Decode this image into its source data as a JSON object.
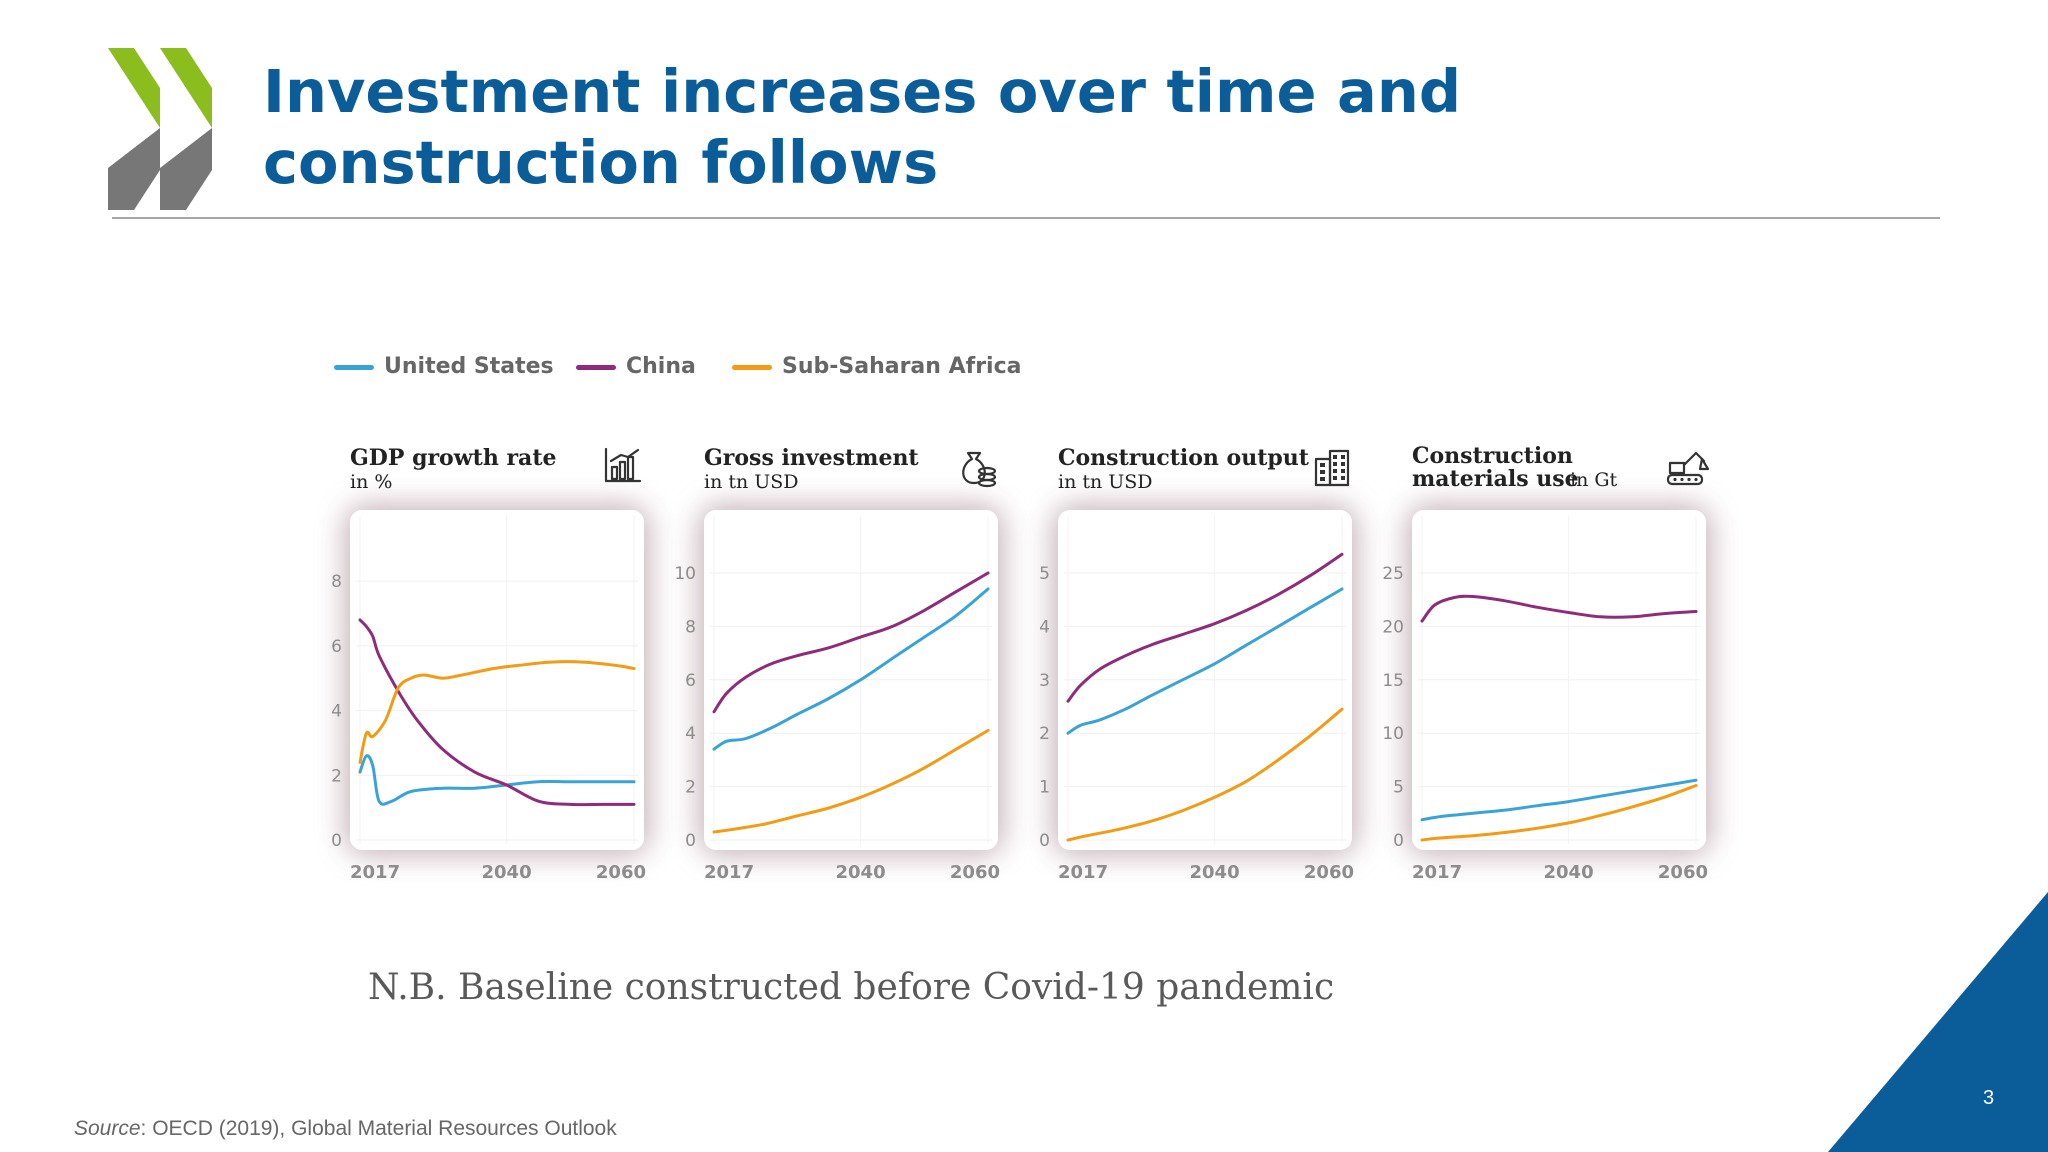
{
  "slide": {
    "title": "Investment increases over time and construction follows",
    "note": "N.B. Baseline constructed before Covid-19 pandemic",
    "source_label": "Source",
    "source_text": ": OECD (2019), Global Material Resources Outlook",
    "page_number": "3",
    "colors": {
      "title": "#0a5d98",
      "logo_green": "#8cbd1e",
      "logo_grey": "#777777",
      "corner": "#0a5d98"
    }
  },
  "legend": [
    {
      "label": "United States",
      "color": "#3aa3d6"
    },
    {
      "label": "China",
      "color": "#8e2c7a"
    },
    {
      "label": "Sub-Saharan Africa",
      "color": "#f29b14"
    }
  ],
  "chart_data": [
    {
      "type": "line",
      "title": "GDP growth rate",
      "subtitle": "in %",
      "icon": "bar-chart-icon",
      "x_ticks": [
        2017,
        2040,
        2060
      ],
      "xlim": [
        2017,
        2060
      ],
      "y_ticks": [
        0,
        2,
        4,
        6,
        8
      ],
      "ylim": [
        0,
        8.5
      ],
      "series": [
        {
          "name": "United States",
          "color": "#3aa3d6",
          "points": [
            [
              2017,
              2.1
            ],
            [
              2018,
              2.6
            ],
            [
              2019,
              2.3
            ],
            [
              2020,
              1.2
            ],
            [
              2022,
              1.2
            ],
            [
              2025,
              1.5
            ],
            [
              2030,
              1.6
            ],
            [
              2035,
              1.6
            ],
            [
              2040,
              1.7
            ],
            [
              2045,
              1.8
            ],
            [
              2050,
              1.8
            ],
            [
              2055,
              1.8
            ],
            [
              2060,
              1.8
            ]
          ]
        },
        {
          "name": "China",
          "color": "#8e2c7a",
          "points": [
            [
              2017,
              6.8
            ],
            [
              2018,
              6.6
            ],
            [
              2019,
              6.3
            ],
            [
              2020,
              5.7
            ],
            [
              2023,
              4.6
            ],
            [
              2026,
              3.7
            ],
            [
              2030,
              2.8
            ],
            [
              2035,
              2.1
            ],
            [
              2040,
              1.7
            ],
            [
              2045,
              1.2
            ],
            [
              2050,
              1.1
            ],
            [
              2055,
              1.1
            ],
            [
              2060,
              1.1
            ]
          ]
        },
        {
          "name": "Sub-Saharan Africa",
          "color": "#f29b14",
          "points": [
            [
              2017,
              2.4
            ],
            [
              2018,
              3.3
            ],
            [
              2019,
              3.2
            ],
            [
              2021,
              3.7
            ],
            [
              2023,
              4.7
            ],
            [
              2025,
              5.0
            ],
            [
              2027,
              5.1
            ],
            [
              2030,
              5.0
            ],
            [
              2033,
              5.1
            ],
            [
              2038,
              5.3
            ],
            [
              2042,
              5.4
            ],
            [
              2047,
              5.5
            ],
            [
              2052,
              5.5
            ],
            [
              2057,
              5.4
            ],
            [
              2060,
              5.3
            ]
          ]
        }
      ]
    },
    {
      "type": "line",
      "title": "Gross investment",
      "subtitle": "in tn USD",
      "icon": "money-bag-icon",
      "x_ticks": [
        2017,
        2040,
        2060
      ],
      "xlim": [
        2017,
        2060
      ],
      "y_ticks": [
        0,
        2,
        4,
        6,
        8,
        10
      ],
      "ylim": [
        0,
        10.3
      ],
      "series": [
        {
          "name": "United States",
          "color": "#3aa3d6",
          "points": [
            [
              2017,
              3.4
            ],
            [
              2019,
              3.7
            ],
            [
              2022,
              3.8
            ],
            [
              2026,
              4.2
            ],
            [
              2030,
              4.7
            ],
            [
              2035,
              5.3
            ],
            [
              2040,
              6.0
            ],
            [
              2045,
              6.8
            ],
            [
              2050,
              7.6
            ],
            [
              2055,
              8.4
            ],
            [
              2060,
              9.4
            ]
          ]
        },
        {
          "name": "China",
          "color": "#8e2c7a",
          "points": [
            [
              2017,
              4.8
            ],
            [
              2019,
              5.5
            ],
            [
              2022,
              6.1
            ],
            [
              2026,
              6.6
            ],
            [
              2030,
              6.9
            ],
            [
              2035,
              7.2
            ],
            [
              2040,
              7.6
            ],
            [
              2045,
              8.0
            ],
            [
              2050,
              8.6
            ],
            [
              2055,
              9.3
            ],
            [
              2060,
              10.0
            ]
          ]
        },
        {
          "name": "Sub-Saharan Africa",
          "color": "#f29b14",
          "points": [
            [
              2017,
              0.3
            ],
            [
              2020,
              0.4
            ],
            [
              2025,
              0.6
            ],
            [
              2030,
              0.9
            ],
            [
              2035,
              1.2
            ],
            [
              2040,
              1.6
            ],
            [
              2045,
              2.1
            ],
            [
              2050,
              2.7
            ],
            [
              2055,
              3.4
            ],
            [
              2060,
              4.1
            ]
          ]
        }
      ]
    },
    {
      "type": "line",
      "title": "Construction output",
      "subtitle": "in tn USD",
      "icon": "building-icon",
      "x_ticks": [
        2017,
        2040,
        2060
      ],
      "xlim": [
        2017,
        2060
      ],
      "y_ticks": [
        0,
        1,
        2,
        3,
        4,
        5
      ],
      "ylim": [
        0,
        5.15
      ],
      "series": [
        {
          "name": "United States",
          "color": "#3aa3d6",
          "points": [
            [
              2017,
              2.0
            ],
            [
              2019,
              2.15
            ],
            [
              2022,
              2.25
            ],
            [
              2026,
              2.45
            ],
            [
              2030,
              2.7
            ],
            [
              2035,
              3.0
            ],
            [
              2040,
              3.3
            ],
            [
              2045,
              3.65
            ],
            [
              2050,
              4.0
            ],
            [
              2055,
              4.35
            ],
            [
              2060,
              4.7
            ]
          ]
        },
        {
          "name": "China",
          "color": "#8e2c7a",
          "points": [
            [
              2017,
              2.6
            ],
            [
              2019,
              2.9
            ],
            [
              2022,
              3.2
            ],
            [
              2026,
              3.45
            ],
            [
              2030,
              3.65
            ],
            [
              2035,
              3.85
            ],
            [
              2040,
              4.05
            ],
            [
              2045,
              4.3
            ],
            [
              2050,
              4.6
            ],
            [
              2055,
              4.95
            ],
            [
              2060,
              5.35
            ]
          ]
        },
        {
          "name": "Sub-Saharan Africa",
          "color": "#f29b14",
          "points": [
            [
              2017,
              0.0
            ],
            [
              2020,
              0.08
            ],
            [
              2025,
              0.2
            ],
            [
              2030,
              0.35
            ],
            [
              2035,
              0.55
            ],
            [
              2040,
              0.8
            ],
            [
              2045,
              1.1
            ],
            [
              2050,
              1.5
            ],
            [
              2055,
              1.95
            ],
            [
              2060,
              2.45
            ]
          ]
        }
      ]
    },
    {
      "type": "line",
      "title": "Construction",
      "title_line2": "materials use",
      "subtitle": "in Gt",
      "icon": "excavator-icon",
      "x_ticks": [
        2017,
        2040,
        2060
      ],
      "xlim": [
        2017,
        2060
      ],
      "y_ticks": [
        0,
        5,
        10,
        15,
        20,
        25
      ],
      "ylim": [
        0,
        25.75
      ],
      "series": [
        {
          "name": "United States",
          "color": "#3aa3d6",
          "points": [
            [
              2017,
              1.9
            ],
            [
              2020,
              2.2
            ],
            [
              2025,
              2.5
            ],
            [
              2030,
              2.8
            ],
            [
              2035,
              3.2
            ],
            [
              2040,
              3.6
            ],
            [
              2045,
              4.1
            ],
            [
              2050,
              4.6
            ],
            [
              2055,
              5.1
            ],
            [
              2060,
              5.6
            ]
          ]
        },
        {
          "name": "China",
          "color": "#8e2c7a",
          "points": [
            [
              2017,
              20.5
            ],
            [
              2019,
              22.0
            ],
            [
              2022,
              22.7
            ],
            [
              2025,
              22.8
            ],
            [
              2030,
              22.4
            ],
            [
              2035,
              21.8
            ],
            [
              2040,
              21.3
            ],
            [
              2045,
              20.9
            ],
            [
              2050,
              20.9
            ],
            [
              2055,
              21.2
            ],
            [
              2060,
              21.4
            ]
          ]
        },
        {
          "name": "Sub-Saharan Africa",
          "color": "#f29b14",
          "points": [
            [
              2017,
              0.0
            ],
            [
              2020,
              0.2
            ],
            [
              2025,
              0.4
            ],
            [
              2030,
              0.7
            ],
            [
              2035,
              1.1
            ],
            [
              2040,
              1.6
            ],
            [
              2045,
              2.3
            ],
            [
              2050,
              3.1
            ],
            [
              2055,
              4.0
            ],
            [
              2060,
              5.1
            ]
          ]
        }
      ]
    }
  ]
}
